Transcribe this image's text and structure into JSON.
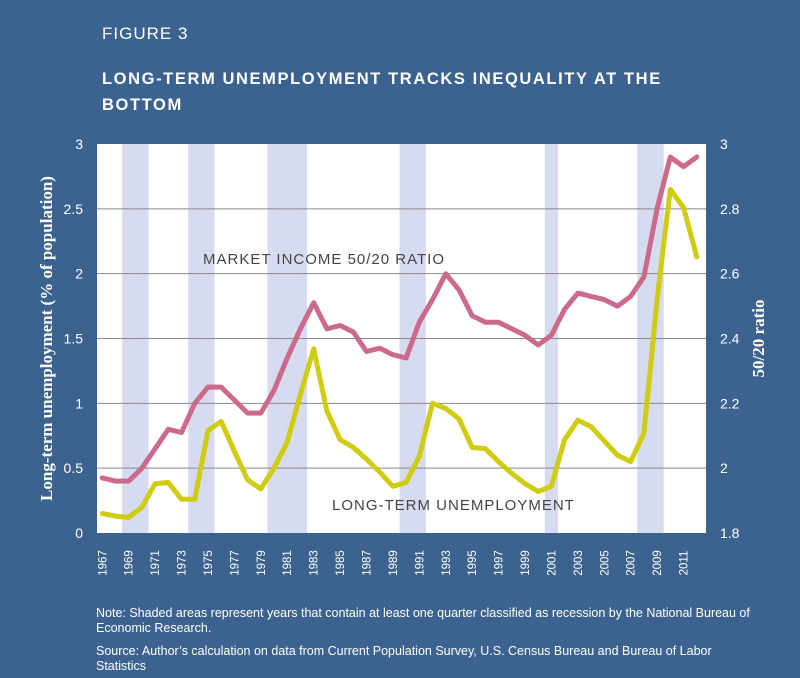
{
  "figure_label": "FIGURE 3",
  "title": "LONG-TERM UNEMPLOYMENT TRACKS INEQUALITY AT THE BOTTOM",
  "notes": {
    "shading": "Note: Shaded areas represent years that contain at least one quarter classified as recession by the National Bureau of Economic Research.",
    "source": "Source: Author’s calculation on data from Current Population Survey, U.S. Census Bureau and Bureau of Labor Statistics"
  },
  "colors": {
    "background": "#3c6390",
    "plot_area": "#ffffff",
    "recession_shade": "#d6dbef",
    "ratio_line": "#cc6a8c",
    "unemployment_line": "#cfcc12",
    "gridline": "#8a8a8a"
  },
  "chart_data": {
    "type": "line",
    "ylabel_left": "Long-term unemployment (% of population)",
    "ylabel_right": "50/20 ratio",
    "ylim_left": [
      0,
      3
    ],
    "ylim_right": [
      1.8,
      3
    ],
    "yticks_left": [
      "0",
      "0.5",
      "1",
      "1.5",
      "2",
      "2.5",
      "3"
    ],
    "yticks_right": [
      "1.8",
      "2",
      "2.2",
      "2.4",
      "2.6",
      "2.8",
      "3"
    ],
    "x_tick_labels": [
      "1967",
      "1969",
      "1971",
      "1973",
      "1975",
      "1977",
      "1979",
      "1981",
      "1983",
      "1985",
      "1987",
      "1989",
      "1991",
      "1993",
      "1995",
      "1997",
      "1999",
      "2001",
      "2003",
      "2005",
      "2007",
      "2009",
      "2011"
    ],
    "grid": "horizontal",
    "recession_years": [
      1969,
      1970,
      1974,
      1975,
      1980,
      1981,
      1982,
      1990,
      1991,
      2001,
      2008,
      2009
    ],
    "annotations": {
      "ratio": "MARKET INCOME 50/20 RATIO",
      "unemployment": "LONG-TERM UNEMPLOYMENT"
    },
    "series": [
      {
        "name": "LONG-TERM UNEMPLOYMENT",
        "axis": "left",
        "x": [
          1967,
          1968,
          1969,
          1970,
          1971,
          1972,
          1973,
          1974,
          1975,
          1976,
          1977,
          1978,
          1979,
          1980,
          1981,
          1982,
          1983,
          1984,
          1985,
          1986,
          1987,
          1988,
          1989,
          1990,
          1991,
          1992,
          1993,
          1994,
          1995,
          1996,
          1997,
          1998,
          1999,
          2000,
          2001,
          2002,
          2003,
          2004,
          2005,
          2006,
          2007,
          2008,
          2009,
          2010,
          2011,
          2012
        ],
        "values": [
          0.15,
          0.13,
          0.12,
          0.2,
          0.38,
          0.39,
          0.26,
          0.26,
          0.79,
          0.86,
          0.63,
          0.41,
          0.34,
          0.5,
          0.7,
          1.07,
          1.42,
          0.94,
          0.72,
          0.66,
          0.57,
          0.47,
          0.36,
          0.39,
          0.59,
          1.0,
          0.96,
          0.88,
          0.66,
          0.65,
          0.55,
          0.46,
          0.38,
          0.32,
          0.36,
          0.72,
          0.87,
          0.82,
          0.71,
          0.6,
          0.55,
          0.77,
          1.8,
          2.65,
          2.51,
          2.13
        ]
      },
      {
        "name": "MARKET INCOME 50/20 RATIO",
        "axis": "right",
        "x": [
          1967,
          1968,
          1969,
          1970,
          1971,
          1972,
          1973,
          1974,
          1975,
          1976,
          1977,
          1978,
          1979,
          1980,
          1981,
          1982,
          1983,
          1984,
          1985,
          1986,
          1987,
          1988,
          1989,
          1990,
          1991,
          1992,
          1993,
          1994,
          1995,
          1996,
          1997,
          1998,
          1999,
          2000,
          2001,
          2002,
          2003,
          2004,
          2005,
          2006,
          2007,
          2008,
          2009,
          2010,
          2011,
          2012
        ],
        "values": [
          1.97,
          1.96,
          1.96,
          2.0,
          2.06,
          2.12,
          2.11,
          2.2,
          2.25,
          2.25,
          2.21,
          2.17,
          2.17,
          2.24,
          2.34,
          2.43,
          2.51,
          2.43,
          2.44,
          2.42,
          2.36,
          2.37,
          2.35,
          2.34,
          2.45,
          2.52,
          2.6,
          2.55,
          2.47,
          2.45,
          2.45,
          2.43,
          2.41,
          2.38,
          2.41,
          2.49,
          2.54,
          2.53,
          2.52,
          2.5,
          2.53,
          2.59,
          2.8,
          2.96,
          2.93,
          2.96
        ]
      }
    ]
  }
}
